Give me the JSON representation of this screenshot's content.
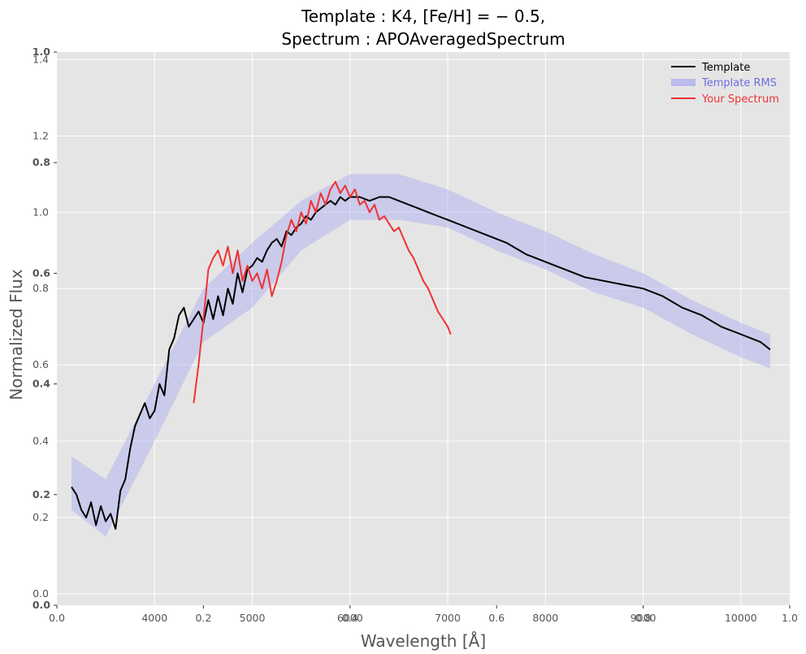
{
  "chart_data": {
    "type": "line",
    "title_line1": "Template : K4, [Fe/H] = − 0.5,",
    "title_line2": "Spectrum : APOAveragedSpectrum",
    "xlabel": "Wavelength [Å]",
    "ylabel": "Normalized Flux",
    "xlim": [
      3000,
      10500
    ],
    "ylim": [
      -0.03,
      1.42
    ],
    "x_ticks": [
      4000,
      5000,
      6000,
      7000,
      8000,
      9000,
      10000
    ],
    "y_ticks": [
      0.0,
      0.2,
      0.4,
      0.6,
      0.8,
      1.0,
      1.2,
      1.4
    ],
    "overlay_x_ticks": [
      "0.0",
      "0.2",
      "0.4",
      "0.6",
      "0.8",
      "1.0"
    ],
    "overlay_y_ticks": [
      "0.0",
      "0.2",
      "0.4",
      "0.6",
      "0.8",
      "1.0"
    ],
    "grid": true,
    "legend_position": "top-right",
    "colors": {
      "template": "#000000",
      "rms": "#a9a9f0",
      "spectrum": "#f03232",
      "background": "#e5e5e5",
      "grid": "#ffffff"
    },
    "series": [
      {
        "name": "Template",
        "x": [
          3150,
          3200,
          3250,
          3300,
          3350,
          3400,
          3450,
          3500,
          3550,
          3600,
          3650,
          3700,
          3750,
          3800,
          3850,
          3900,
          3950,
          4000,
          4050,
          4100,
          4150,
          4200,
          4250,
          4300,
          4350,
          4400,
          4450,
          4500,
          4550,
          4600,
          4650,
          4700,
          4750,
          4800,
          4850,
          4900,
          4950,
          5000,
          5050,
          5100,
          5150,
          5200,
          5250,
          5300,
          5350,
          5400,
          5450,
          5500,
          5550,
          5600,
          5650,
          5700,
          5750,
          5800,
          5850,
          5900,
          5950,
          6000,
          6100,
          6200,
          6300,
          6400,
          6500,
          6600,
          6700,
          6800,
          6900,
          7000,
          7200,
          7400,
          7600,
          7800,
          8000,
          8200,
          8400,
          8600,
          8800,
          9000,
          9200,
          9400,
          9600,
          9800,
          10000,
          10200,
          10300
        ],
        "y": [
          0.28,
          0.26,
          0.22,
          0.2,
          0.24,
          0.18,
          0.23,
          0.19,
          0.21,
          0.17,
          0.27,
          0.3,
          0.38,
          0.44,
          0.47,
          0.5,
          0.46,
          0.48,
          0.55,
          0.52,
          0.64,
          0.67,
          0.73,
          0.75,
          0.7,
          0.72,
          0.74,
          0.71,
          0.77,
          0.72,
          0.78,
          0.73,
          0.8,
          0.76,
          0.84,
          0.79,
          0.85,
          0.86,
          0.88,
          0.87,
          0.9,
          0.92,
          0.93,
          0.91,
          0.95,
          0.94,
          0.96,
          0.97,
          0.99,
          0.98,
          1.0,
          1.01,
          1.02,
          1.03,
          1.02,
          1.04,
          1.03,
          1.04,
          1.04,
          1.03,
          1.04,
          1.04,
          1.03,
          1.02,
          1.01,
          1.0,
          0.99,
          0.98,
          0.96,
          0.94,
          0.92,
          0.89,
          0.87,
          0.85,
          0.83,
          0.82,
          0.81,
          0.8,
          0.78,
          0.75,
          0.73,
          0.7,
          0.68,
          0.66,
          0.64
        ]
      },
      {
        "name": "Template RMS",
        "x": [
          3150,
          3500,
          4000,
          4500,
          5000,
          5500,
          6000,
          6500,
          7000,
          7500,
          8000,
          8500,
          9000,
          9500,
          10000,
          10300
        ],
        "y_low": [
          0.22,
          0.15,
          0.4,
          0.66,
          0.75,
          0.9,
          0.98,
          0.98,
          0.96,
          0.9,
          0.85,
          0.79,
          0.75,
          0.68,
          0.62,
          0.59
        ],
        "y_high": [
          0.36,
          0.3,
          0.55,
          0.8,
          0.92,
          1.03,
          1.1,
          1.1,
          1.06,
          1.0,
          0.95,
          0.89,
          0.84,
          0.77,
          0.71,
          0.68
        ]
      },
      {
        "name": "Your Spectrum",
        "x": [
          4400,
          4450,
          4500,
          4550,
          4600,
          4650,
          4700,
          4750,
          4800,
          4850,
          4900,
          4950,
          5000,
          5050,
          5100,
          5150,
          5200,
          5250,
          5300,
          5350,
          5400,
          5450,
          5500,
          5550,
          5600,
          5650,
          5700,
          5750,
          5800,
          5850,
          5900,
          5950,
          6000,
          6050,
          6100,
          6150,
          6200,
          6250,
          6300,
          6350,
          6400,
          6450,
          6500,
          6550,
          6600,
          6650,
          6700,
          6750,
          6800,
          6850,
          6900,
          6950,
          7000,
          7030
        ],
        "y": [
          0.5,
          0.6,
          0.72,
          0.85,
          0.88,
          0.9,
          0.86,
          0.91,
          0.84,
          0.9,
          0.82,
          0.86,
          0.82,
          0.84,
          0.8,
          0.85,
          0.78,
          0.82,
          0.87,
          0.94,
          0.98,
          0.95,
          1.0,
          0.97,
          1.03,
          1.0,
          1.05,
          1.02,
          1.06,
          1.08,
          1.05,
          1.07,
          1.04,
          1.06,
          1.02,
          1.03,
          1.0,
          1.02,
          0.98,
          0.99,
          0.97,
          0.95,
          0.96,
          0.93,
          0.9,
          0.88,
          0.85,
          0.82,
          0.8,
          0.77,
          0.74,
          0.72,
          0.7,
          0.68
        ]
      }
    ]
  }
}
